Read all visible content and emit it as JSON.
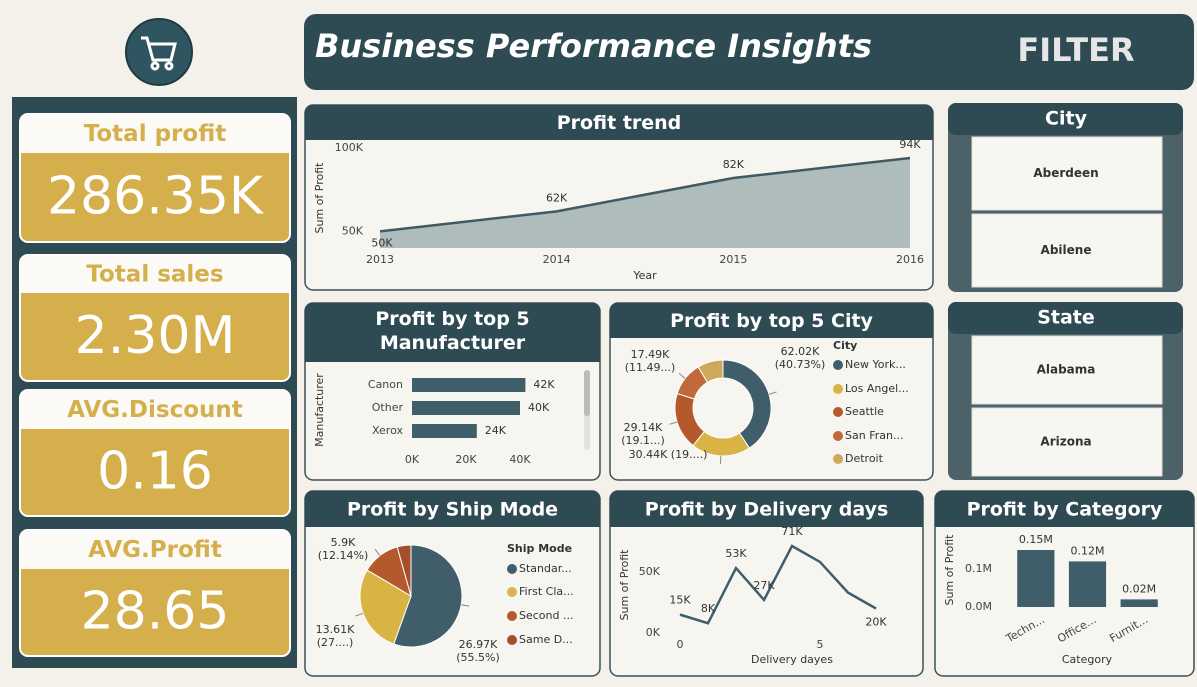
{
  "header": {
    "title": "Business Performance Insights",
    "filter_label": "FILTER"
  },
  "kpis": [
    {
      "label": "Total profit",
      "value": "286.35K"
    },
    {
      "label": "Total sales",
      "value": "2.30M"
    },
    {
      "label": "AVG.Discount",
      "value": "0.16"
    },
    {
      "label": "AVG.Profit",
      "value": "28.65"
    }
  ],
  "filters": [
    {
      "title": "City",
      "items": [
        "Aberdeen",
        "Abilene"
      ]
    },
    {
      "title": "State",
      "items": [
        "Alabama",
        "Arizona"
      ]
    }
  ],
  "chart_data": [
    {
      "type": "area",
      "title": "Profit trend",
      "x_label": "Year",
      "y_label": "Sum of Profit",
      "x": [
        2013,
        2014,
        2015,
        2016
      ],
      "values": [
        50000,
        62000,
        82000,
        94000
      ],
      "value_labels": [
        "50K",
        "62K",
        "82K",
        "94K"
      ],
      "color": "#3f5a62",
      "fill": "#aebcbc",
      "xlim": [
        2013,
        2016
      ],
      "xticks": [
        2013,
        2014,
        2015,
        2016
      ],
      "ylim": [
        40000,
        100000
      ],
      "yticks": [
        {
          "value": 50000,
          "label": "50K"
        },
        {
          "value": 100000,
          "label": "100K"
        }
      ]
    },
    {
      "type": "hbar",
      "title": "Profit by top 5 Manufacturer",
      "y_label": "Manufacturer",
      "categories": [
        "Canon",
        "Other",
        "Xerox"
      ],
      "values": [
        42000,
        40000,
        24000
      ],
      "value_labels": [
        "42K",
        "40K",
        "24K"
      ],
      "color": "#3f5e6a",
      "xlim": [
        0,
        60000
      ],
      "xticks": [
        {
          "value": 0,
          "label": "0K"
        },
        {
          "value": 20000,
          "label": "20K"
        },
        {
          "value": 40000,
          "label": "40K"
        }
      ]
    },
    {
      "type": "donut",
      "title": "Profit by top 5 City",
      "legend_title": "City",
      "categories": [
        "New York...",
        "Los Angel...",
        "Seattle",
        "San Fran...",
        "Detroit"
      ],
      "values": [
        62020,
        30440,
        29140,
        17490,
        13180
      ],
      "value_labels": [
        "62.02K",
        "30.44K (19....)",
        "29.14K",
        "17.49K",
        null
      ],
      "percent_labels": [
        "(40.73%)",
        null,
        "(19.1...)",
        "(11.49...)",
        null
      ],
      "colors": [
        "#3f5e6a",
        "#d9b445",
        "#b3592c",
        "#c0693a",
        "#cfa85c"
      ]
    },
    {
      "type": "pie",
      "title": "Profit by Ship Mode",
      "legend_title": "Ship Mode",
      "categories": [
        "Standar...",
        "First Cla...",
        "Second ...",
        "Same D..."
      ],
      "values": [
        26970,
        13610,
        5900,
        2120
      ],
      "value_labels": [
        "26.97K",
        "13.61K",
        "5.9K",
        null
      ],
      "percent_labels": [
        "(55.5%)",
        "(27....)",
        "(12.14%)",
        null
      ],
      "colors": [
        "#3f5e6a",
        "#d9b445",
        "#b3592c",
        "#a34f2a"
      ]
    },
    {
      "type": "line",
      "title": "Profit by Delivery days",
      "x_label": "Delivery dayes",
      "y_label": "Sum of Profit",
      "x": [
        0,
        1,
        2,
        3,
        4,
        5,
        6,
        7
      ],
      "values": [
        15000,
        8000,
        53000,
        27000,
        71000,
        58000,
        33000,
        20000
      ],
      "value_labels": [
        "15K",
        "8K",
        "53K",
        "27K",
        "71K",
        null,
        null,
        "20K"
      ],
      "color": "#3f5e6a",
      "xlim": [
        0,
        7
      ],
      "xticks": [
        0,
        5
      ],
      "ylim": [
        0,
        80000
      ],
      "yticks": [
        {
          "value": 0,
          "label": "0K"
        },
        {
          "value": 50000,
          "label": "50K"
        }
      ]
    },
    {
      "type": "bar",
      "title": "Profit by Category",
      "x_label": "Category",
      "y_label": "Sum of Profit",
      "categories": [
        "Techn...",
        "Office...",
        "Furnit..."
      ],
      "values": [
        150000,
        120000,
        20000
      ],
      "value_labels": [
        "0.15M",
        "0.12M",
        "0.02M"
      ],
      "color": "#3f5e6a",
      "ylim": [
        0,
        200000
      ],
      "yticks": [
        {
          "value": 0,
          "label": "0.0M"
        },
        {
          "value": 100000,
          "label": "0.1M"
        }
      ]
    }
  ]
}
